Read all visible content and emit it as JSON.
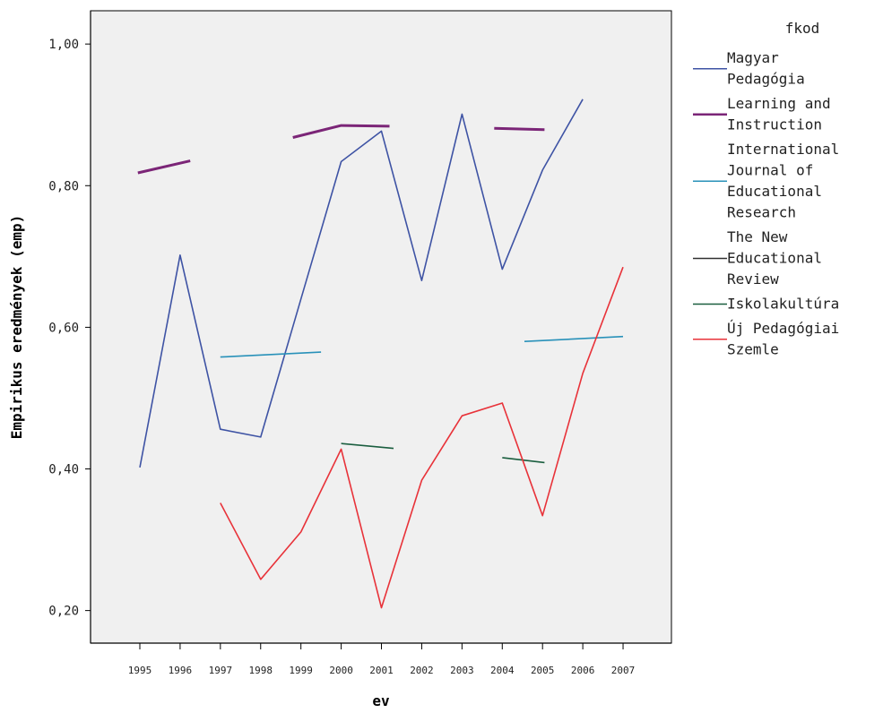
{
  "chart_data": {
    "type": "line",
    "xlabel": "ev",
    "ylabel": "Empirikus eredmények (emp)",
    "ylim": [
      0.154,
      1.047
    ],
    "yticks": [
      "0,20",
      "0,40",
      "0,60",
      "0,80",
      "1,00"
    ],
    "ytick_values": [
      0.2,
      0.4,
      0.6,
      0.8,
      1.0
    ],
    "categories": [
      "1995",
      "1996",
      "1997",
      "1998",
      "1999",
      "2000",
      "2001",
      "2002",
      "2003",
      "2004",
      "2005",
      "2006",
      "2007"
    ],
    "grid": false,
    "plot_background": "#f0f0f0",
    "legend": {
      "title": "fkod",
      "position": "right"
    },
    "series": [
      {
        "name": "Magyar Pedagógia",
        "color": "#3e53a4",
        "width": 1.6,
        "segments": [
          [
            [
              0,
              0.402
            ],
            [
              1,
              0.702
            ],
            [
              2,
              0.456
            ],
            [
              3,
              0.445
            ],
            [
              4,
              0.64
            ],
            [
              5,
              0.834
            ],
            [
              6,
              0.877
            ],
            [
              7,
              0.666
            ],
            [
              8,
              0.901
            ],
            [
              9,
              0.682
            ],
            [
              10,
              0.822
            ],
            [
              11,
              0.922
            ]
          ]
        ]
      },
      {
        "name": "Learning and Instruction",
        "color": "#7b2577",
        "width": 3,
        "segments": [
          [
            [
              -0.05,
              0.818
            ],
            [
              1.25,
              0.835
            ]
          ],
          [
            [
              3.8,
              0.868
            ],
            [
              5.0,
              0.885
            ],
            [
              6.2,
              0.884
            ]
          ],
          [
            [
              8.8,
              0.881
            ],
            [
              10.05,
              0.879
            ]
          ]
        ]
      },
      {
        "name": "International Journal of Educational Research",
        "color": "#2891b9",
        "width": 1.6,
        "segments": [
          [
            [
              2.0,
              0.558
            ],
            [
              4.5,
              0.565
            ]
          ],
          [
            [
              9.55,
              0.58
            ],
            [
              12.0,
              0.587
            ]
          ]
        ]
      },
      {
        "name": "The New Educational Review",
        "color": "#303030",
        "width": 1.6,
        "segments": []
      },
      {
        "name": "Iskolakultúra",
        "color": "#1a5e3f",
        "width": 1.6,
        "segments": [
          [
            [
              5.0,
              0.436
            ],
            [
              6.3,
              0.429
            ]
          ],
          [
            [
              9.0,
              0.416
            ],
            [
              10.05,
              0.409
            ]
          ]
        ]
      },
      {
        "name": "Új Pedagógiai Szemle",
        "color": "#e83239",
        "width": 1.6,
        "segments": [
          [
            [
              2,
              0.352
            ],
            [
              3,
              0.244
            ],
            [
              4,
              0.311
            ],
            [
              5,
              0.428
            ],
            [
              6,
              0.204
            ],
            [
              7,
              0.384
            ],
            [
              8,
              0.475
            ],
            [
              9,
              0.493
            ],
            [
              10,
              0.334
            ],
            [
              11,
              0.535
            ],
            [
              12,
              0.685
            ]
          ]
        ]
      }
    ]
  },
  "legend_items": [
    {
      "lines": [
        "Magyar",
        "Pedagógia"
      ],
      "color": "#3e53a4",
      "width": 1.6
    },
    {
      "lines": [
        "Learning and",
        "Instruction"
      ],
      "color": "#7b2577",
      "width": 2.4
    },
    {
      "lines": [
        "International",
        "Journal of",
        "Educational",
        "Research"
      ],
      "color": "#2891b9",
      "width": 1.6
    },
    {
      "lines": [
        "The New",
        "Educational",
        "Review"
      ],
      "color": "#303030",
      "width": 1.6
    },
    {
      "lines": [
        "Iskolakultúra"
      ],
      "color": "#1a5e3f",
      "width": 1.6
    },
    {
      "lines": [
        "Új Pedagógiai",
        "Szemle"
      ],
      "color": "#e83239",
      "width": 1.6
    }
  ]
}
